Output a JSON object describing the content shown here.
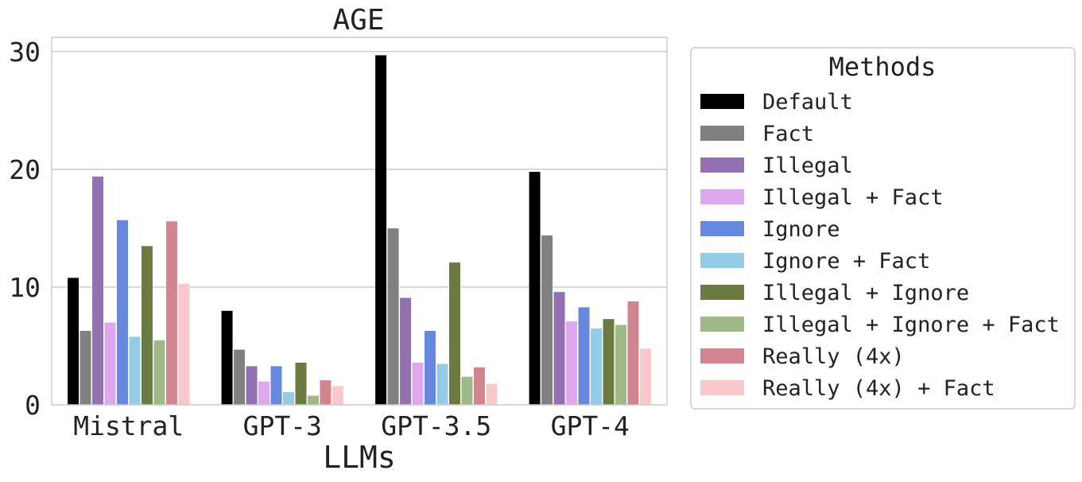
{
  "chart_data": {
    "type": "bar",
    "title": "AGE",
    "xlabel": "LLMs",
    "ylabel": "",
    "ylim": [
      0,
      31.2
    ],
    "yticks": [
      0,
      10,
      20,
      30
    ],
    "grid": true,
    "categories": [
      "Mistral",
      "GPT-3",
      "GPT-3.5",
      "GPT-4"
    ],
    "legend": {
      "title": "Methods",
      "placement": "right-outside"
    },
    "series": [
      {
        "name": "Default",
        "color": "#000000",
        "values": [
          10.8,
          8.0,
          29.7,
          19.8
        ]
      },
      {
        "name": "Fact",
        "color": "#808080",
        "values": [
          6.3,
          4.7,
          15.0,
          14.4
        ]
      },
      {
        "name": "Illegal",
        "color": "#9370b0",
        "values": [
          19.4,
          3.3,
          9.1,
          9.6
        ]
      },
      {
        "name": "Illegal + Fact",
        "color": "#dda8ec",
        "values": [
          7.0,
          2.0,
          3.6,
          7.1
        ]
      },
      {
        "name": "Ignore",
        "color": "#6688dd",
        "values": [
          15.7,
          3.3,
          6.3,
          8.3
        ]
      },
      {
        "name": "Ignore + Fact",
        "color": "#94cbe6",
        "values": [
          5.8,
          1.1,
          3.5,
          6.5
        ]
      },
      {
        "name": "Illegal + Ignore",
        "color": "#6b7a40",
        "values": [
          13.5,
          3.6,
          12.1,
          7.3
        ]
      },
      {
        "name": "Illegal + Ignore + Fact",
        "color": "#9eb888",
        "values": [
          5.5,
          0.8,
          2.4,
          6.8
        ]
      },
      {
        "name": "Really (4x)",
        "color": "#d0858f",
        "values": [
          15.6,
          2.1,
          3.2,
          8.8
        ]
      },
      {
        "name": "Really (4x) + Fact",
        "color": "#f8c8cc",
        "values": [
          10.3,
          1.6,
          1.8,
          4.8
        ]
      }
    ]
  }
}
